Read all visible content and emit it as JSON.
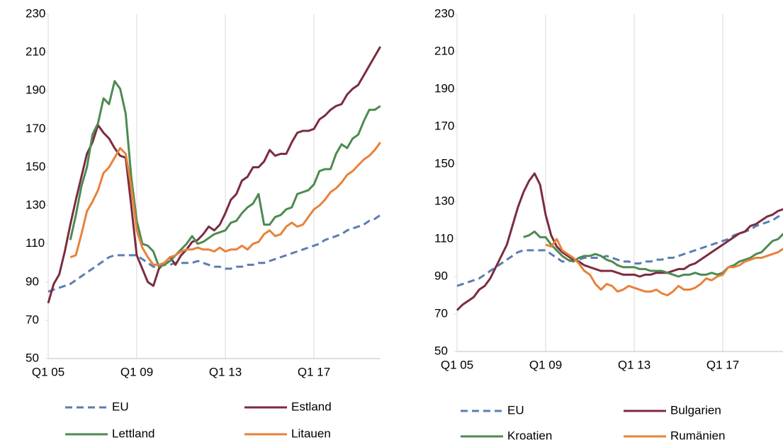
{
  "chart_data": [
    {
      "type": "line",
      "categories": [
        "Q1 05",
        null,
        null,
        null,
        null,
        null,
        null,
        null,
        null,
        null,
        null,
        null,
        null,
        null,
        null,
        null,
        "Q1 09",
        null,
        null,
        null,
        null,
        null,
        null,
        null,
        null,
        null,
        null,
        null,
        null,
        null,
        null,
        null,
        "Q1 13",
        null,
        null,
        null,
        null,
        null,
        null,
        null,
        null,
        null,
        null,
        null,
        null,
        null,
        null,
        null,
        "Q1 17",
        null,
        null,
        null,
        null,
        null,
        null,
        null,
        null,
        null,
        null,
        null,
        null
      ],
      "ylim": [
        50,
        230
      ],
      "yticks": [
        50,
        70,
        90,
        110,
        130,
        150,
        170,
        190,
        210,
        230
      ],
      "xgrid": true,
      "series": [
        {
          "name": "EU",
          "color": "#5b7db3",
          "dash": true,
          "values": [
            85,
            86,
            87,
            88,
            89,
            91,
            93,
            95,
            97,
            99,
            101,
            103,
            104,
            104,
            104,
            104,
            104,
            102,
            100,
            98,
            98,
            99,
            99,
            100,
            100,
            100,
            100,
            101,
            100,
            99,
            98,
            98,
            97,
            97,
            98,
            98,
            99,
            99,
            100,
            100,
            101,
            102,
            103,
            104,
            105,
            106,
            107,
            108,
            109,
            110,
            112,
            113,
            114,
            115,
            117,
            118,
            119,
            120,
            122,
            123,
            125
          ]
        },
        {
          "name": "Estland",
          "color": "#7b2c3f",
          "values": [
            79,
            89,
            94,
            106,
            120,
            133,
            145,
            157,
            163,
            172,
            168,
            165,
            160,
            156,
            155,
            130,
            104,
            97,
            90,
            88,
            97,
            100,
            103,
            99,
            104,
            107,
            111,
            112,
            115,
            119,
            117,
            120,
            126,
            133,
            136,
            143,
            145,
            150,
            150,
            153,
            159,
            156,
            157,
            157,
            163,
            168,
            169,
            169,
            170,
            175,
            177,
            180,
            182,
            183,
            188,
            191,
            193,
            198,
            203,
            208,
            213
          ]
        },
        {
          "name": "Lettland",
          "color": "#4e8a52",
          "values": [
            null,
            null,
            null,
            null,
            112,
            125,
            140,
            150,
            167,
            173,
            186,
            183,
            195,
            191,
            178,
            145,
            122,
            110,
            109,
            106,
            98,
            99,
            101,
            104,
            107,
            110,
            114,
            110,
            111,
            113,
            115,
            116,
            117,
            121,
            122,
            126,
            129,
            131,
            136,
            120,
            120,
            124,
            125,
            128,
            129,
            136,
            137,
            138,
            141,
            148,
            149,
            149,
            157,
            162,
            160,
            165,
            167,
            174,
            180,
            180,
            182
          ]
        },
        {
          "name": "Litauen",
          "color": "#e8823a",
          "values": [
            null,
            null,
            null,
            null,
            103,
            104,
            115,
            127,
            132,
            138,
            147,
            150,
            155,
            160,
            157,
            140,
            117,
            108,
            103,
            99,
            99,
            100,
            103,
            104,
            106,
            107,
            107,
            108,
            107,
            107,
            106,
            108,
            106,
            107,
            107,
            109,
            107,
            110,
            111,
            115,
            117,
            114,
            115,
            119,
            121,
            119,
            120,
            124,
            128,
            130,
            133,
            137,
            139,
            142,
            146,
            148,
            151,
            154,
            156,
            159,
            163
          ]
        }
      ]
    },
    {
      "type": "line",
      "categories": [
        "Q1 05",
        null,
        null,
        null,
        null,
        null,
        null,
        null,
        null,
        null,
        null,
        null,
        null,
        null,
        null,
        null,
        "Q1 09",
        null,
        null,
        null,
        null,
        null,
        null,
        null,
        null,
        null,
        null,
        null,
        null,
        null,
        null,
        null,
        "Q1 13",
        null,
        null,
        null,
        null,
        null,
        null,
        null,
        null,
        null,
        null,
        null,
        null,
        null,
        null,
        null,
        "Q1 17",
        null,
        null,
        null,
        null,
        null,
        null,
        null,
        null,
        null,
        null,
        null
      ],
      "ylim": [
        50,
        230
      ],
      "yticks": [
        50,
        70,
        90,
        110,
        130,
        150,
        170,
        190,
        210,
        230
      ],
      "xgrid": true,
      "series": [
        {
          "name": "EU",
          "color": "#5b7db3",
          "dash": true,
          "values": [
            85,
            86,
            87,
            88,
            89,
            91,
            93,
            95,
            97,
            99,
            101,
            103,
            104,
            104,
            104,
            104,
            104,
            102,
            100,
            98,
            98,
            99,
            99,
            100,
            100,
            100,
            100,
            101,
            100,
            99,
            98,
            98,
            97,
            97,
            98,
            98,
            99,
            99,
            100,
            100,
            101,
            102,
            103,
            104,
            105,
            106,
            107,
            108,
            109,
            110,
            112,
            113,
            114,
            115,
            117,
            118,
            119,
            120,
            122,
            123
          ]
        },
        {
          "name": "Bulgarien",
          "color": "#7b2c3f",
          "values": [
            72,
            75,
            77,
            79,
            83,
            85,
            89,
            95,
            101,
            107,
            117,
            127,
            135,
            141,
            145,
            139,
            123,
            112,
            106,
            103,
            101,
            99,
            98,
            96,
            95,
            94,
            93,
            93,
            93,
            92,
            91,
            91,
            91,
            90,
            91,
            91,
            92,
            92,
            92,
            93,
            94,
            94,
            96,
            97,
            99,
            101,
            103,
            105,
            107,
            109,
            111,
            113,
            114,
            117,
            118,
            120,
            122,
            123,
            125,
            126
          ]
        },
        {
          "name": "Kroatien",
          "color": "#4e8a52",
          "values": [
            null,
            null,
            null,
            null,
            null,
            null,
            null,
            null,
            null,
            null,
            null,
            null,
            111,
            112,
            114,
            111,
            111,
            107,
            104,
            101,
            99,
            98,
            100,
            101,
            101,
            102,
            101,
            99,
            98,
            96,
            95,
            95,
            95,
            94,
            94,
            93,
            93,
            93,
            92,
            91,
            90,
            91,
            91,
            92,
            91,
            91,
            92,
            91,
            92,
            95,
            96,
            98,
            99,
            100,
            102,
            103,
            106,
            109,
            110,
            113
          ]
        },
        {
          "name": "Rumänien",
          "color": "#e8823a",
          "values": [
            null,
            null,
            null,
            null,
            null,
            null,
            null,
            null,
            null,
            null,
            null,
            null,
            null,
            null,
            null,
            null,
            107,
            106,
            110,
            104,
            102,
            100,
            97,
            93,
            91,
            86,
            83,
            86,
            85,
            82,
            83,
            85,
            84,
            83,
            82,
            82,
            83,
            81,
            80,
            82,
            85,
            83,
            83,
            84,
            86,
            89,
            88,
            90,
            91,
            95,
            95,
            96,
            98,
            99,
            100,
            100,
            101,
            102,
            103,
            105
          ]
        }
      ]
    }
  ]
}
